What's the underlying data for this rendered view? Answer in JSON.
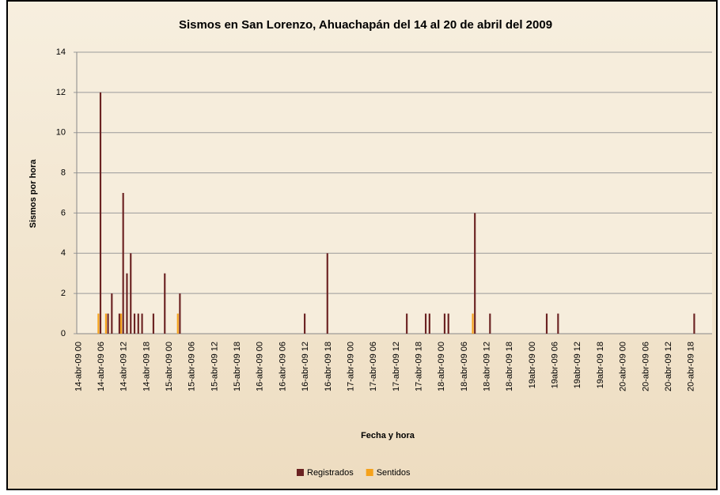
{
  "chart_data": {
    "type": "bar",
    "title": "Sismos  en San Lorenzo, Ahuachapán del 14 al 20 de abril del 2009",
    "x_label": "Fecha y hora",
    "y_label": "Sismos por hora",
    "categories": [
      "14-abr-09 00",
      null,
      null,
      null,
      null,
      null,
      "14-abr-09 06",
      null,
      null,
      null,
      null,
      null,
      "14-abr-09 12",
      null,
      null,
      null,
      null,
      null,
      "14-abr-09 18",
      null,
      null,
      null,
      null,
      null,
      "15-abr-09 00",
      null,
      null,
      null,
      null,
      null,
      "15-abr-09 06",
      null,
      null,
      null,
      null,
      null,
      "15-abr-09 12",
      null,
      null,
      null,
      null,
      null,
      "15-abr-09 18",
      null,
      null,
      null,
      null,
      null,
      "16-abr-09 00",
      null,
      null,
      null,
      null,
      null,
      "16-abr-09 06",
      null,
      null,
      null,
      null,
      null,
      "16-abr-09 12",
      null,
      null,
      null,
      null,
      null,
      "16-abr-09 18",
      null,
      null,
      null,
      null,
      null,
      "17-abr-09 00",
      null,
      null,
      null,
      null,
      null,
      "17-abr-09 06",
      null,
      null,
      null,
      null,
      null,
      "17-abr-09 12",
      null,
      null,
      null,
      null,
      null,
      "17-abr-09 18",
      null,
      null,
      null,
      null,
      null,
      "18-abr-09 00",
      null,
      null,
      null,
      null,
      null,
      "18-abr-09 06",
      null,
      null,
      null,
      null,
      null,
      "18-abr-09 12",
      null,
      null,
      null,
      null,
      null,
      "18-abr-09 18",
      null,
      null,
      null,
      null,
      null,
      "19abr-09 00",
      null,
      null,
      null,
      null,
      null,
      "19abr-09 06",
      null,
      null,
      null,
      null,
      null,
      "19abr-09 12",
      null,
      null,
      null,
      null,
      null,
      "19abr-09 18",
      null,
      null,
      null,
      null,
      null,
      "20-abr-09 00",
      null,
      null,
      null,
      null,
      null,
      "20-abr-09 06",
      null,
      null,
      null,
      null,
      null,
      "20-abr-09 12",
      null,
      null,
      null,
      null,
      null,
      "20-abr-09 18",
      null,
      null,
      null,
      null,
      null
    ],
    "series": [
      {
        "name": "Registrados",
        "color": "#6b2222",
        "values": [
          0,
          0,
          0,
          0,
          0,
          0,
          12,
          0,
          1,
          2,
          0,
          1,
          7,
          3,
          4,
          1,
          1,
          1,
          0,
          0,
          1,
          0,
          0,
          3,
          0,
          0,
          0,
          2,
          0,
          0,
          0,
          0,
          0,
          0,
          0,
          0,
          0,
          0,
          0,
          0,
          0,
          0,
          0,
          0,
          0,
          0,
          0,
          0,
          0,
          0,
          0,
          0,
          0,
          0,
          0,
          0,
          0,
          0,
          0,
          0,
          1,
          0,
          0,
          0,
          0,
          0,
          4,
          0,
          0,
          0,
          0,
          0,
          0,
          0,
          0,
          0,
          0,
          0,
          0,
          0,
          0,
          0,
          0,
          0,
          0,
          0,
          0,
          1,
          0,
          0,
          0,
          0,
          1,
          1,
          0,
          0,
          0,
          1,
          1,
          0,
          0,
          0,
          0,
          0,
          0,
          6,
          0,
          0,
          0,
          1,
          0,
          0,
          0,
          0,
          0,
          0,
          0,
          0,
          0,
          0,
          0,
          0,
          0,
          0,
          1,
          0,
          0,
          1,
          0,
          0,
          0,
          0,
          0,
          0,
          0,
          0,
          0,
          0,
          0,
          0,
          0,
          0,
          0,
          0,
          0,
          0,
          0,
          0,
          0,
          0,
          0,
          0,
          0,
          0,
          0,
          0,
          0,
          0,
          0,
          0,
          0,
          0,
          0,
          1,
          0,
          0,
          0,
          0
        ]
      },
      {
        "name": "Sentidos",
        "color": "#f5a21b",
        "values": [
          0,
          0,
          0,
          0,
          0,
          1,
          0,
          1,
          0,
          0,
          0,
          1,
          0,
          0,
          0,
          0,
          0,
          0,
          0,
          0,
          0,
          0,
          0,
          0,
          0,
          0,
          1,
          0,
          0,
          0,
          0,
          0,
          0,
          0,
          0,
          0,
          0,
          0,
          0,
          0,
          0,
          0,
          0,
          0,
          0,
          0,
          0,
          0,
          0,
          0,
          0,
          0,
          0,
          0,
          0,
          0,
          0,
          0,
          0,
          0,
          0,
          0,
          0,
          0,
          0,
          0,
          0,
          0,
          0,
          0,
          0,
          0,
          0,
          0,
          0,
          0,
          0,
          0,
          0,
          0,
          0,
          0,
          0,
          0,
          0,
          0,
          0,
          0,
          0,
          0,
          0,
          0,
          0,
          0,
          0,
          0,
          0,
          0,
          0,
          0,
          0,
          0,
          0,
          0,
          1,
          0,
          0,
          0,
          0,
          0,
          0,
          0,
          0,
          0,
          0,
          0,
          0,
          0,
          0,
          0,
          0,
          0,
          0,
          0,
          0,
          0,
          0,
          0,
          0,
          0,
          0,
          0,
          0,
          0,
          0,
          0,
          0,
          0,
          0,
          0,
          0,
          0,
          0,
          0,
          0,
          0,
          0,
          0,
          0,
          0,
          0,
          0,
          0,
          0,
          0,
          0,
          0,
          0,
          0,
          0,
          0,
          0,
          0,
          0,
          0,
          0,
          0,
          0
        ]
      }
    ],
    "ylim": [
      0,
      14
    ],
    "yticks": [
      0,
      2,
      4,
      6,
      8,
      10,
      12,
      14
    ],
    "grid": true,
    "legend": "bottom"
  }
}
